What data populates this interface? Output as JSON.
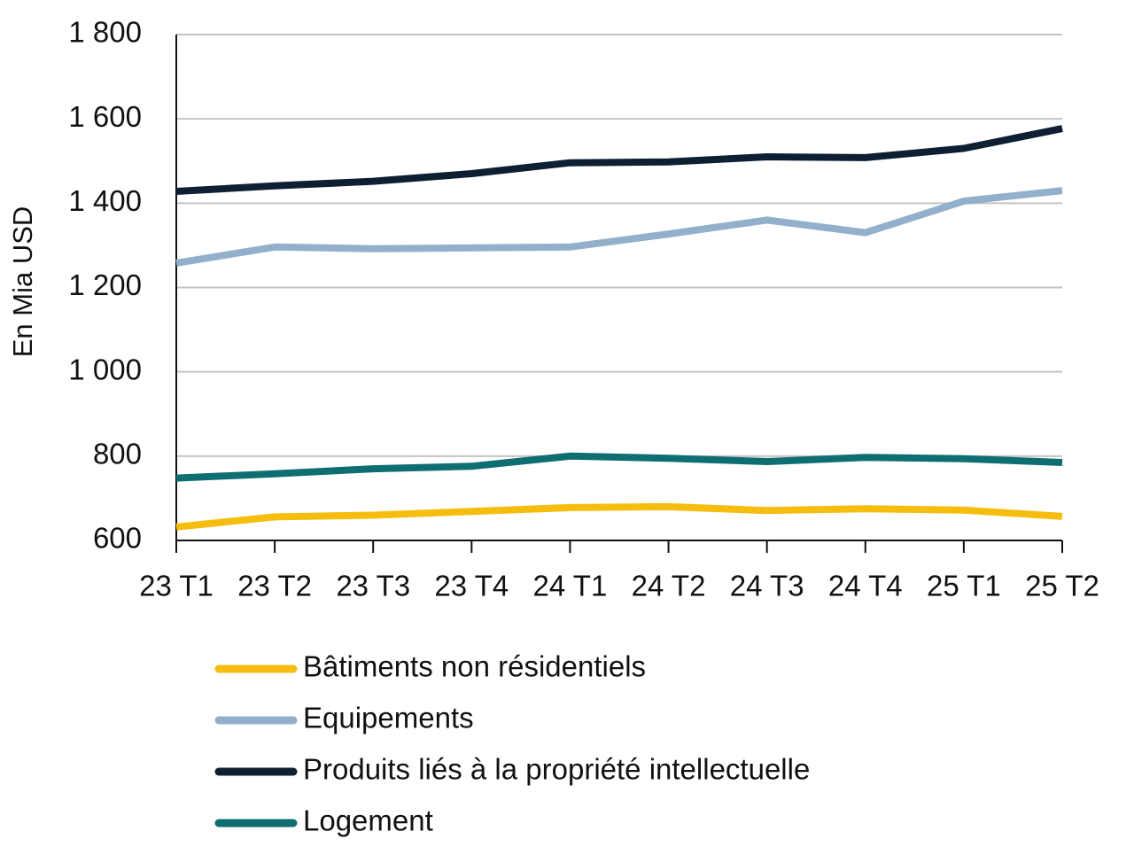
{
  "chart_data": {
    "type": "line",
    "title": "",
    "xlabel": "",
    "ylabel": "En Mia USD",
    "ylim": [
      600,
      1800
    ],
    "yticks": [
      600,
      800,
      1000,
      1200,
      1400,
      1600,
      1800
    ],
    "ytick_labels": [
      "600",
      "800",
      "1 000",
      "1 200",
      "1 400",
      "1 600",
      "1 800"
    ],
    "grid": true,
    "legend_position": "bottom",
    "categories": [
      "23 T1",
      "23 T2",
      "23 T3",
      "23 T4",
      "24 T1",
      "24 T2",
      "24 T3",
      "24 T4",
      "25 T1",
      "25 T2"
    ],
    "series": [
      {
        "name": "Bâtiments non résidentiels",
        "color": "#f5be0f",
        "values": [
          632,
          656,
          660,
          669,
          678,
          680,
          671,
          675,
          672,
          657
        ]
      },
      {
        "name": "Equipements",
        "color": "#92b0cc",
        "values": [
          1258,
          1296,
          1292,
          1294,
          1296,
          1327,
          1360,
          1330,
          1405,
          1430
        ]
      },
      {
        "name": "Produits liés à la propriété intellectuelle",
        "color": "#0e1f33",
        "values": [
          1428,
          1441,
          1452,
          1470,
          1496,
          1498,
          1510,
          1508,
          1530,
          1577
        ]
      },
      {
        "name": "Logement",
        "color": "#0e6e72",
        "values": [
          748,
          758,
          770,
          776,
          800,
          795,
          787,
          797,
          794,
          785
        ]
      }
    ]
  }
}
